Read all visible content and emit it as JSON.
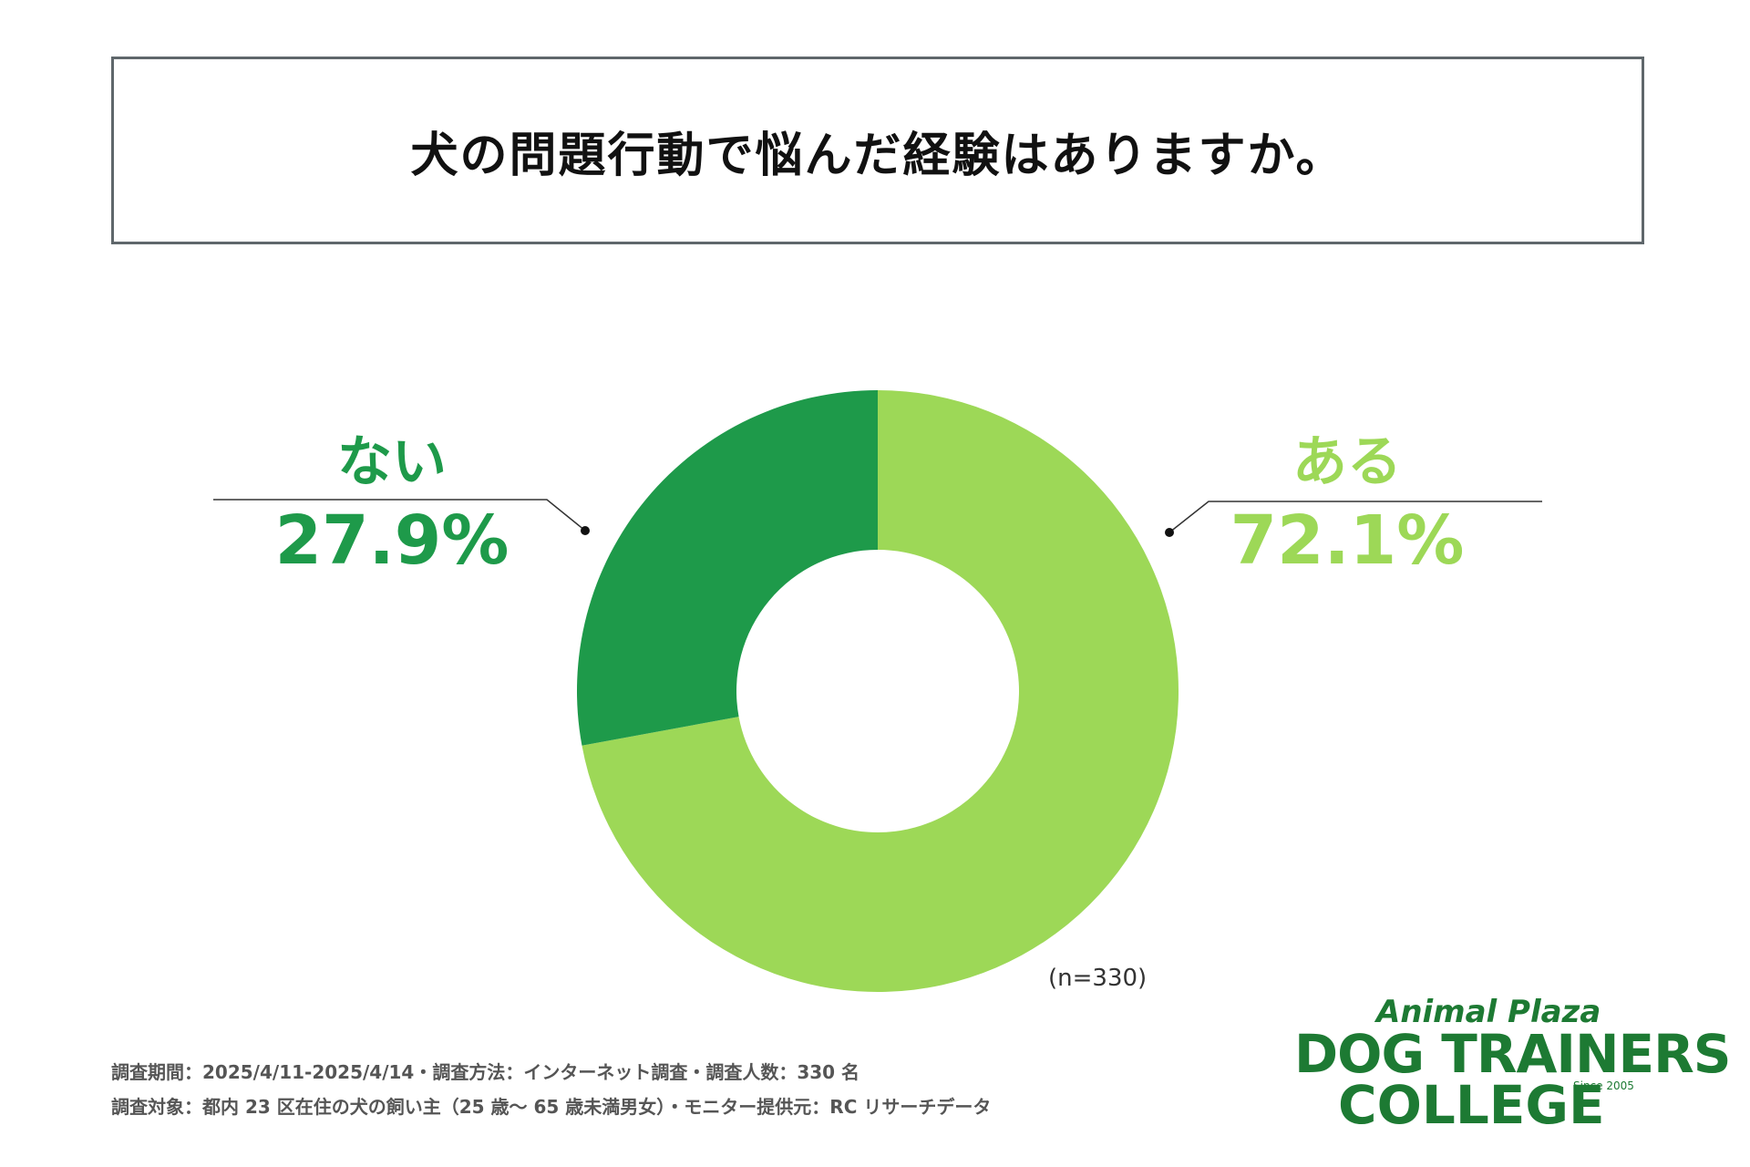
{
  "title": "犬の問題行動で悩んだ経験はありますか。",
  "chart_data": {
    "type": "pie",
    "variant": "donut",
    "title": "犬の問題行動で悩んだ経験はありますか。",
    "slices": [
      {
        "label": "ある",
        "value": 72.1,
        "display": "72.1%",
        "color": "#9dd857"
      },
      {
        "label": "ない",
        "value": 27.9,
        "display": "27.9%",
        "color": "#1e9a4a"
      }
    ],
    "sample_size": "(n=330)"
  },
  "footnotes": [
    "調査期間：2025/4/11-2025/4/14・調査方法：インターネット調査・調査人数：330 名",
    "調査対象：都内 23 区在住の犬の飼い主（25 歳〜 65 歳未満男女）・モニター提供元：RC リサーチデータ"
  ],
  "logo": {
    "line1": "Animal Plaza",
    "line2": "DOG TRAINERS",
    "line3": "COLLEGE",
    "since": "Since 2005"
  }
}
